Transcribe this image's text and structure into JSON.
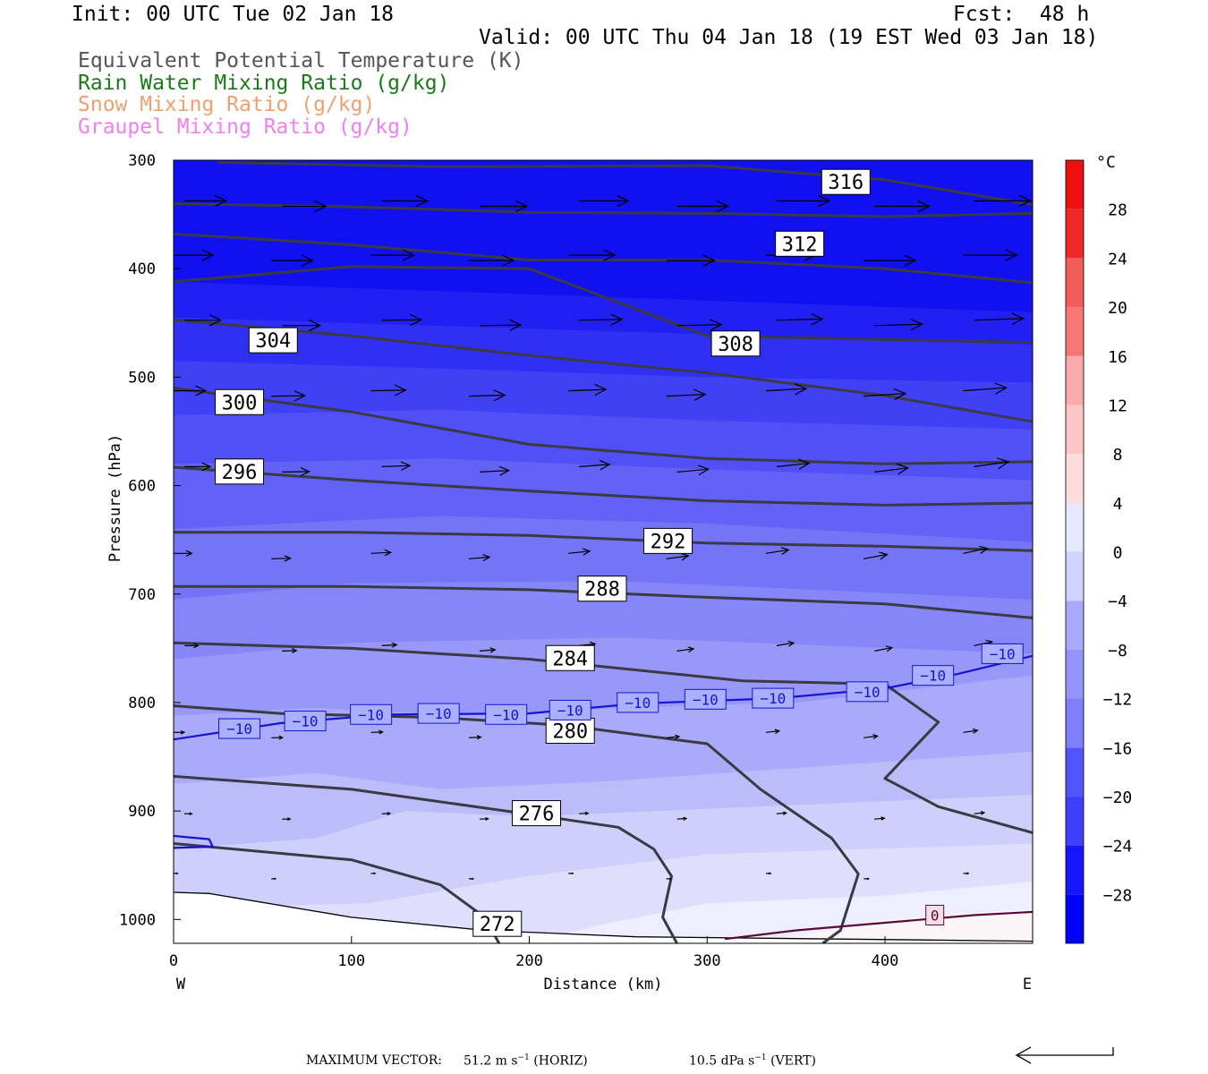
{
  "header": {
    "init": "Init: 00 UTC Tue 02 Jan 18",
    "fcst": "Fcst:  48 h",
    "valid": "Valid: 00 UTC Thu 04 Jan 18 (19 EST Wed 03 Jan 18)"
  },
  "legend": [
    {
      "text": "Equivalent Potential Temperature (K)",
      "color": "#555555"
    },
    {
      "text": "Rain Water Mixing Ratio (g/kg)",
      "color": "#1a7a1a"
    },
    {
      "text": "Snow Mixing Ratio (g/kg)",
      "color": "#f0a070"
    },
    {
      "text": "Graupel Mixing Ratio (g/kg)",
      "color": "#f080f0"
    }
  ],
  "chart_data": {
    "type": "contour",
    "xlabel": "Distance (km)",
    "ylabel": "Pressure (hPa)",
    "xlim": [
      0,
      483
    ],
    "ylim": [
      1022,
      300
    ],
    "x_ticks": [
      0,
      100,
      200,
      300,
      400
    ],
    "y_ticks": [
      300,
      400,
      500,
      600,
      700,
      800,
      900,
      1000
    ],
    "direction_labels": {
      "left": "W",
      "right": "E"
    },
    "colorbar": {
      "unit": "°C",
      "ticks": [
        28,
        24,
        20,
        16,
        12,
        8,
        4,
        0,
        -4,
        -8,
        -12,
        -16,
        -20,
        -24,
        -28
      ],
      "tick_labels": [
        "28",
        "24",
        "20",
        "16",
        "12",
        "8",
        "4",
        "0",
        "−4",
        "−8",
        "−12",
        "−16",
        "−20",
        "−24",
        "−28"
      ],
      "range": [
        -32,
        32
      ]
    },
    "theta_e_labels": [
      {
        "text": "316",
        "x": 378,
        "p": 320
      },
      {
        "text": "312",
        "x": 352,
        "p": 377
      },
      {
        "text": "308",
        "x": 316,
        "p": 469
      },
      {
        "text": "304",
        "x": 56,
        "p": 466
      },
      {
        "text": "300",
        "x": 37,
        "p": 523
      },
      {
        "text": "296",
        "x": 37,
        "p": 587
      },
      {
        "text": "292",
        "x": 278,
        "p": 651
      },
      {
        "text": "288",
        "x": 241,
        "p": 695
      },
      {
        "text": "284",
        "x": 223,
        "p": 759
      },
      {
        "text": "280",
        "x": 223,
        "p": 826
      },
      {
        "text": "276",
        "x": 204,
        "p": 902
      },
      {
        "text": "272",
        "x": 182,
        "p": 1004
      }
    ],
    "isotherm_labels": [
      {
        "text": "−10",
        "x": 37,
        "p": 824
      },
      {
        "text": "−10",
        "x": 74,
        "p": 817
      },
      {
        "text": "−10",
        "x": 111,
        "p": 811
      },
      {
        "text": "−10",
        "x": 149,
        "p": 810
      },
      {
        "text": "−10",
        "x": 187,
        "p": 811
      },
      {
        "text": "−10",
        "x": 223,
        "p": 807
      },
      {
        "text": "−10",
        "x": 261,
        "p": 800
      },
      {
        "text": "−10",
        "x": 299,
        "p": 797
      },
      {
        "text": "−10",
        "x": 337,
        "p": 796
      },
      {
        "text": "−10",
        "x": 390,
        "p": 790
      },
      {
        "text": "−10",
        "x": 427,
        "p": 775
      },
      {
        "text": "−10",
        "x": 466,
        "p": 755
      },
      {
        "text": "0",
        "x": 428,
        "p": 996
      }
    ]
  },
  "footer": {
    "max_vector_label": "MAXIMUM VECTOR:",
    "horiz_value": "51.2",
    "horiz_unit": "m s",
    "horiz_suffix": "(HORIZ)",
    "vert_value": "10.5",
    "vert_unit": "dPa s",
    "vert_suffix": "(VERT)",
    "exponent": "−1"
  }
}
